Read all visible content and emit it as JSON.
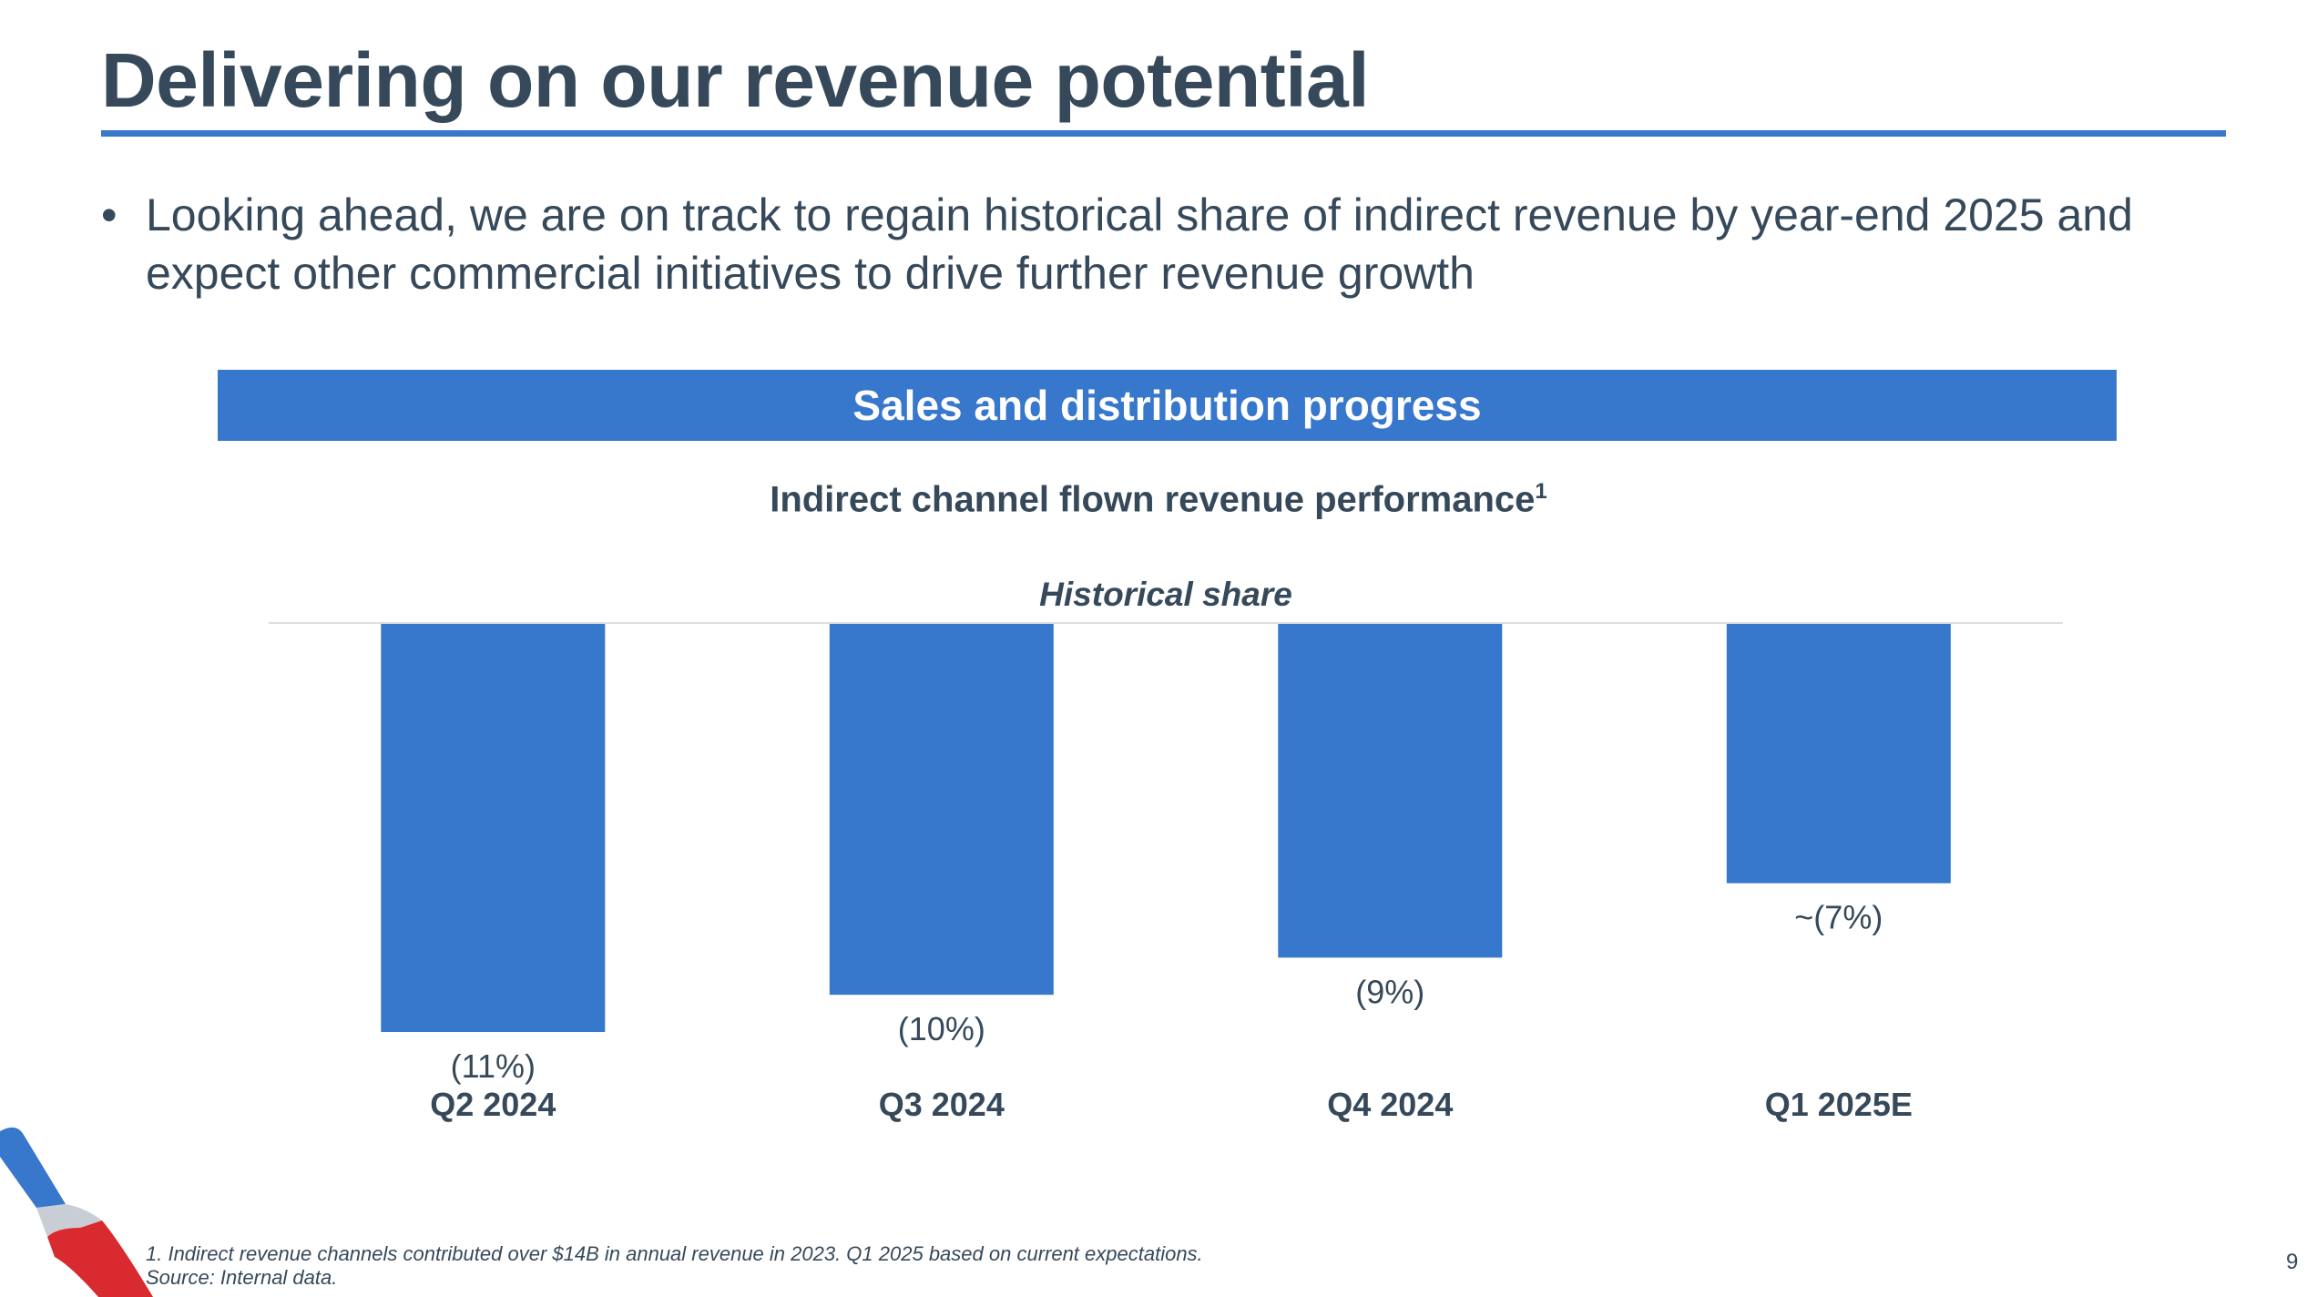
{
  "slide": {
    "title": "Delivering on our revenue potential",
    "bullet": "Looking ahead, we are on track to regain historical share of indirect revenue by year-end 2025 and expect other commercial initiatives to drive further revenue growth",
    "section_header": "Sales and distribution progress",
    "footnote_line1": "1. Indirect revenue channels contributed over $14B in annual revenue in 2023. Q1 2025 based on current expectations.",
    "footnote_line2": "Source: Internal data.",
    "page_number": "9"
  },
  "chart_data": {
    "type": "bar",
    "title": "Indirect channel flown revenue performance",
    "title_footnote_marker": "1",
    "reference_line_label": "Historical share",
    "categories": [
      "Q2 2024",
      "Q3 2024",
      "Q4 2024",
      "Q1 2025E"
    ],
    "values": [
      -11,
      -10,
      -9,
      -7
    ],
    "value_labels": [
      "(11%)",
      "(10%)",
      "(9%)",
      "~(7%)"
    ],
    "unit": "%",
    "ylim": [
      -12,
      0
    ],
    "grid": false,
    "bar_color": "#3777cc",
    "reference_line_color": "#dddddd"
  },
  "colors": {
    "accent": "#3777cc",
    "text": "#36495a",
    "logo_red": "#d82a2f",
    "logo_blue": "#3777cc"
  }
}
